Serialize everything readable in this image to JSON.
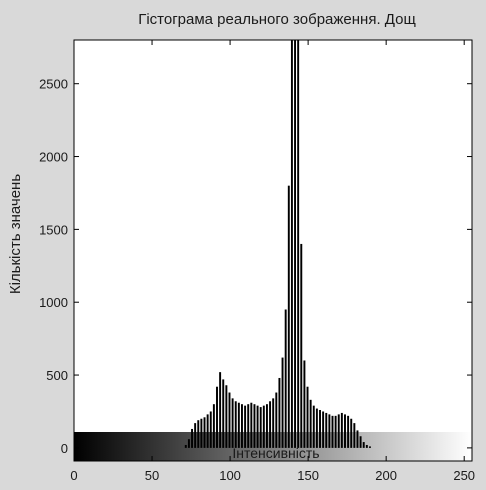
{
  "chart_data": {
    "type": "bar",
    "title": "Гістограма реального зображення. Дощ",
    "xlabel": "Інтенсивність",
    "ylabel": "Кількість значень",
    "xlim": [
      0,
      255
    ],
    "ylim": [
      -90,
      2800
    ],
    "xticks": [
      0,
      50,
      100,
      150,
      200,
      250
    ],
    "yticks": [
      0,
      500,
      1000,
      1500,
      2000,
      2500
    ],
    "grid": false,
    "bar_color": "#000000",
    "colorbar": {
      "from": "#000000",
      "to": "#ffffff",
      "range": [
        0,
        255
      ]
    },
    "x": [
      72,
      74,
      76,
      78,
      80,
      82,
      84,
      86,
      88,
      90,
      92,
      94,
      96,
      98,
      100,
      102,
      104,
      106,
      108,
      110,
      112,
      114,
      116,
      118,
      120,
      122,
      124,
      126,
      128,
      130,
      132,
      134,
      136,
      138,
      140,
      142,
      144,
      146,
      148,
      150,
      152,
      154,
      156,
      158,
      160,
      162,
      164,
      166,
      168,
      170,
      172,
      174,
      176,
      178,
      180,
      182,
      184,
      186,
      188,
      190,
      192
    ],
    "values": [
      20,
      60,
      130,
      170,
      190,
      200,
      210,
      230,
      250,
      300,
      420,
      520,
      470,
      430,
      380,
      340,
      320,
      310,
      300,
      290,
      300,
      310,
      300,
      290,
      280,
      290,
      300,
      320,
      340,
      380,
      480,
      620,
      950,
      1800,
      2800,
      2800,
      2800,
      1400,
      600,
      420,
      330,
      290,
      270,
      260,
      250,
      240,
      230,
      220,
      220,
      230,
      240,
      230,
      220,
      200,
      170,
      120,
      80,
      40,
      20,
      10,
      0
    ]
  }
}
